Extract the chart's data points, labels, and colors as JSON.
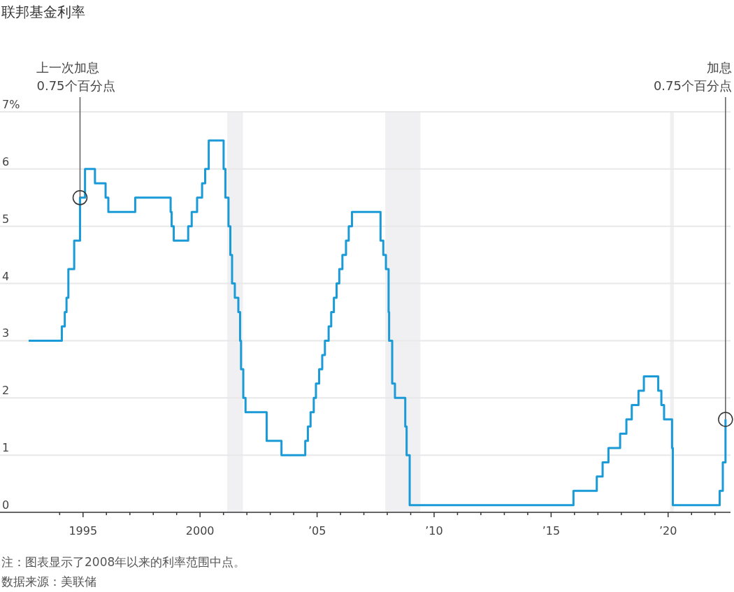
{
  "chart_data": {
    "type": "step",
    "title": "联邦基金利率",
    "series": [
      {
        "color": "#1a9ad6",
        "x": [
          "1992-09-04",
          "1994-02-04",
          "1994-03-22",
          "1994-04-18",
          "1994-05-17",
          "1994-08-16",
          "1994-11-15",
          "1995-02-01",
          "1995-07-06",
          "1995-12-19",
          "1996-01-31",
          "1997-03-25",
          "1998-09-29",
          "1998-10-15",
          "1998-11-17",
          "1999-06-30",
          "1999-08-24",
          "1999-11-16",
          "2000-02-02",
          "2000-03-21",
          "2000-05-16",
          "2001-01-03",
          "2001-01-31",
          "2001-03-20",
          "2001-04-18",
          "2001-05-15",
          "2001-06-27",
          "2001-08-21",
          "2001-09-17",
          "2001-10-02",
          "2001-11-06",
          "2001-12-11",
          "2002-11-06",
          "2003-06-25",
          "2004-06-30",
          "2004-08-10",
          "2004-09-21",
          "2004-11-10",
          "2004-12-14",
          "2005-02-02",
          "2005-03-22",
          "2005-05-03",
          "2005-06-30",
          "2005-08-09",
          "2005-09-20",
          "2005-11-01",
          "2005-12-13",
          "2006-01-31",
          "2006-03-28",
          "2006-05-10",
          "2006-06-29",
          "2007-09-18",
          "2007-10-31",
          "2007-12-11",
          "2008-01-22",
          "2008-01-30",
          "2008-03-18",
          "2008-04-30",
          "2008-10-08",
          "2008-10-29",
          "2008-12-16",
          "2015-12-16",
          "2016-12-14",
          "2017-03-15",
          "2017-06-14",
          "2017-12-13",
          "2018-03-21",
          "2018-06-13",
          "2018-09-26",
          "2018-12-19",
          "2019-07-31",
          "2019-09-18",
          "2019-10-30",
          "2020-03-03",
          "2020-03-15",
          "2022-03-16",
          "2022-05-04",
          "2022-06-15"
        ],
        "values": [
          3.0,
          3.25,
          3.5,
          3.75,
          4.25,
          4.75,
          5.5,
          6.0,
          5.75,
          5.5,
          5.25,
          5.5,
          5.25,
          5.0,
          4.75,
          5.0,
          5.25,
          5.5,
          5.75,
          6.0,
          6.5,
          6.0,
          5.5,
          5.0,
          4.5,
          4.0,
          3.75,
          3.5,
          3.0,
          2.5,
          2.0,
          1.75,
          1.25,
          1.0,
          1.25,
          1.5,
          1.75,
          2.0,
          2.25,
          2.5,
          2.75,
          3.0,
          3.25,
          3.5,
          3.75,
          4.0,
          4.25,
          4.5,
          4.75,
          5.0,
          5.25,
          4.75,
          4.5,
          4.25,
          3.5,
          3.0,
          2.25,
          2.0,
          1.5,
          1.0,
          0.125,
          0.375,
          0.625,
          0.875,
          1.125,
          1.375,
          1.625,
          1.875,
          2.125,
          2.375,
          2.125,
          1.875,
          1.625,
          1.125,
          0.125,
          0.375,
          0.875,
          1.625
        ]
      }
    ],
    "xlim": [
      "1991-06-15",
      "2022-09-01"
    ],
    "ylim": [
      0,
      7
    ],
    "xticks": [
      {
        "value": "1994",
        "label": null
      },
      {
        "value": "1995",
        "label": "1995"
      },
      {
        "value": "1996",
        "label": null
      },
      {
        "value": "1997",
        "label": null
      },
      {
        "value": "1998",
        "label": null
      },
      {
        "value": "1999",
        "label": null
      },
      {
        "value": "2000",
        "label": "2000"
      },
      {
        "value": "2001",
        "label": null
      },
      {
        "value": "2002",
        "label": null
      },
      {
        "value": "2003",
        "label": null
      },
      {
        "value": "2004",
        "label": null
      },
      {
        "value": "2005",
        "label": "’05"
      },
      {
        "value": "2006",
        "label": null
      },
      {
        "value": "2007",
        "label": null
      },
      {
        "value": "2008",
        "label": null
      },
      {
        "value": "2009",
        "label": null
      },
      {
        "value": "2010",
        "label": "’10"
      },
      {
        "value": "2011",
        "label": null
      },
      {
        "value": "2012",
        "label": null
      },
      {
        "value": "2013",
        "label": null
      },
      {
        "value": "2014",
        "label": null
      },
      {
        "value": "2015",
        "label": "’15"
      },
      {
        "value": "2016",
        "label": null
      },
      {
        "value": "2017",
        "label": null
      },
      {
        "value": "2018",
        "label": null
      },
      {
        "value": "2019",
        "label": null
      },
      {
        "value": "2020",
        "label": "’20"
      },
      {
        "value": "2021",
        "label": null
      },
      {
        "value": "2022",
        "label": null
      }
    ],
    "yticks": [
      0,
      1,
      2,
      3,
      4,
      5,
      6,
      {
        "value": 7,
        "label": "7%"
      }
    ],
    "grid": "y",
    "bands": [
      {
        "axis": "x",
        "from": "2001-03",
        "to": "2001-11",
        "color": "#f0f0f2"
      },
      {
        "axis": "x",
        "from": "2007-12",
        "to": "2009-06",
        "color": "#f0f0f2"
      },
      {
        "axis": "x",
        "from": "2020-02",
        "to": "2020-04",
        "color": "#f0f0f2"
      }
    ],
    "annotations": [
      {
        "text": "上一次加息\n0.75个百分点",
        "x": "1994-11-15",
        "y": 5.5
      },
      {
        "text": "加息\n0.75个百分点",
        "x": "2022-06-15",
        "y": 1.625
      },
      "注：图表显示了2008年以来的利率范围中点。",
      "数据来源：美联储"
    ]
  }
}
